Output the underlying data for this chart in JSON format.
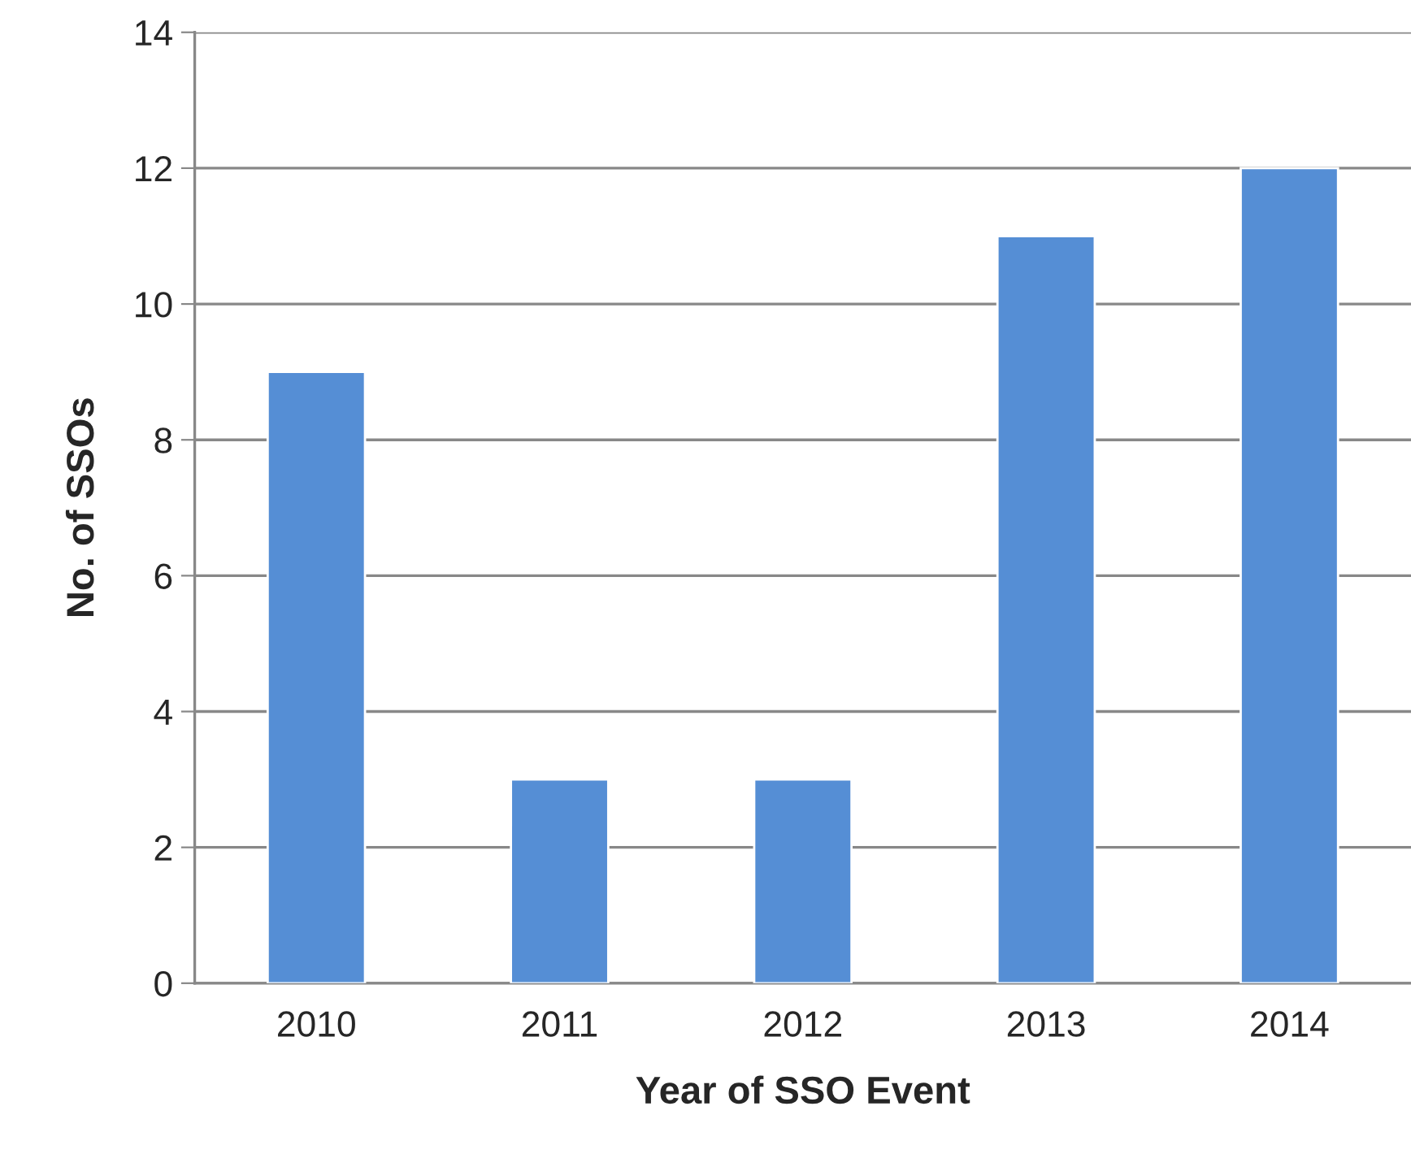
{
  "chart_data": {
    "type": "bar",
    "xlabel": "Year of SSO Event",
    "ylabel": "No. of SSOs",
    "categories": [
      "2010",
      "2011",
      "2012",
      "2013",
      "2014"
    ],
    "values": [
      9,
      3,
      3,
      11,
      12
    ],
    "color": "#558ed5",
    "ylim": [
      0,
      14
    ],
    "yticks": [
      0,
      2,
      4,
      6,
      8,
      10,
      12,
      14
    ],
    "grid": "y"
  }
}
